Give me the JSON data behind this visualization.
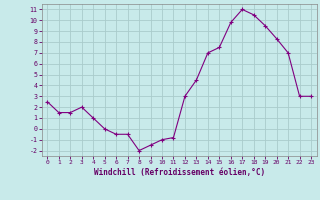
{
  "x": [
    0,
    1,
    2,
    3,
    4,
    5,
    6,
    7,
    8,
    9,
    10,
    11,
    12,
    13,
    14,
    15,
    16,
    17,
    18,
    19,
    20,
    21,
    22,
    23
  ],
  "y": [
    2.5,
    1.5,
    1.5,
    2.0,
    1.0,
    0.0,
    -0.5,
    -0.5,
    -2.0,
    -1.5,
    -1.0,
    -0.8,
    3.0,
    4.5,
    7.0,
    7.5,
    9.8,
    11.0,
    10.5,
    9.5,
    8.3,
    7.0,
    3.0,
    3.0
  ],
  "line_color": "#800080",
  "marker_color": "#800080",
  "bg_color": "#c8eaea",
  "grid_color": "#aacccc",
  "xlabel": "Windchill (Refroidissement éolien,°C)",
  "xlim": [
    -0.5,
    23.5
  ],
  "ylim": [
    -2.5,
    11.5
  ],
  "yticks": [
    -2,
    -1,
    0,
    1,
    2,
    3,
    4,
    5,
    6,
    7,
    8,
    9,
    10,
    11
  ],
  "xticks": [
    0,
    1,
    2,
    3,
    4,
    5,
    6,
    7,
    8,
    9,
    10,
    11,
    12,
    13,
    14,
    15,
    16,
    17,
    18,
    19,
    20,
    21,
    22,
    23
  ]
}
